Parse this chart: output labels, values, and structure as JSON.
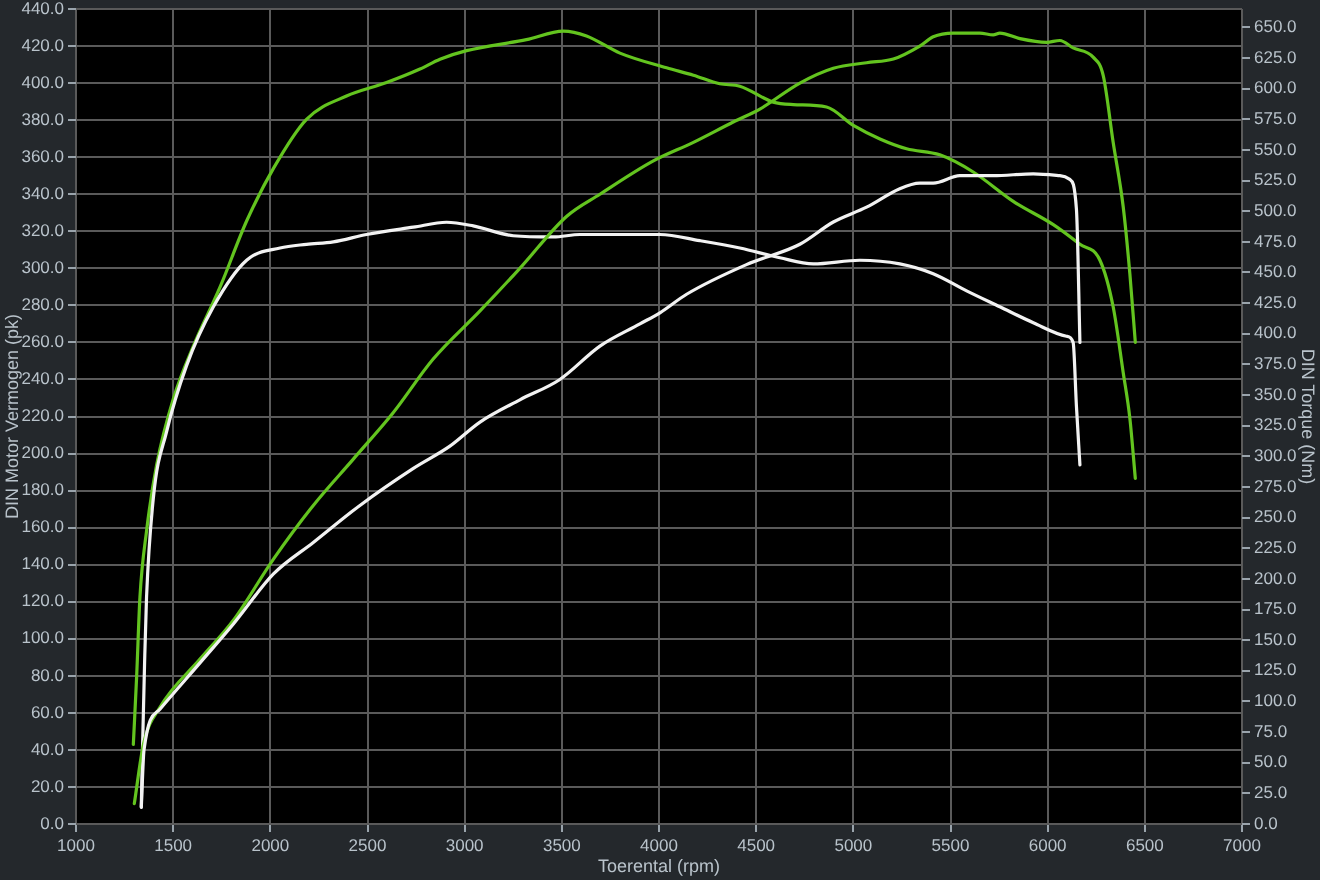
{
  "chart_data": {
    "type": "line",
    "xlabel": "Toerental (rpm)",
    "ylabel": "DIN Motor Vermogen (pk)",
    "y2label": "DIN Torque (Nm)",
    "xlim": [
      1000,
      7000
    ],
    "xticks": [
      1000,
      1500,
      2000,
      2500,
      3000,
      3500,
      4000,
      4500,
      5000,
      5500,
      6000,
      6500,
      7000
    ],
    "ylim": [
      0,
      440
    ],
    "yticks": [
      {
        "value": 0,
        "label": "0.0"
      },
      {
        "value": 20,
        "label": "20.0"
      },
      {
        "value": 40,
        "label": "40.0"
      },
      {
        "value": 60,
        "label": "60.0"
      },
      {
        "value": 80,
        "label": "80.0"
      },
      {
        "value": 100,
        "label": "100.0"
      },
      {
        "value": 120,
        "label": "120.0"
      },
      {
        "value": 140,
        "label": "140.0"
      },
      {
        "value": 160,
        "label": "160.0"
      },
      {
        "value": 180,
        "label": "180.0"
      },
      {
        "value": 200,
        "label": "200.0"
      },
      {
        "value": 220,
        "label": "220.0"
      },
      {
        "value": 240,
        "label": "240.0"
      },
      {
        "value": 260,
        "label": "260.0"
      },
      {
        "value": 280,
        "label": "280.0"
      },
      {
        "value": 300,
        "label": "300.0"
      },
      {
        "value": 320,
        "label": "320.0"
      },
      {
        "value": 340,
        "label": "340.0"
      },
      {
        "value": 360,
        "label": "360.0"
      },
      {
        "value": 380,
        "label": "380.0"
      },
      {
        "value": 400,
        "label": "400.0"
      },
      {
        "value": 420,
        "label": "420.0"
      },
      {
        "value": 440,
        "label": "440.0"
      }
    ],
    "y2lim": [
      0,
      665
    ],
    "y2ticks": [
      {
        "value": 0,
        "label": "0.0"
      },
      {
        "value": 25,
        "label": "25.0"
      },
      {
        "value": 50,
        "label": "50.0"
      },
      {
        "value": 75,
        "label": "75.0"
      },
      {
        "value": 100,
        "label": "100.0"
      },
      {
        "value": 125,
        "label": "125.0"
      },
      {
        "value": 150,
        "label": "150.0"
      },
      {
        "value": 175,
        "label": "175.0"
      },
      {
        "value": 200,
        "label": "200.0"
      },
      {
        "value": 225,
        "label": "225.0"
      },
      {
        "value": 250,
        "label": "250.0"
      },
      {
        "value": 275,
        "label": "275.0"
      },
      {
        "value": 300,
        "label": "300.0"
      },
      {
        "value": 325,
        "label": "325.0"
      },
      {
        "value": 350,
        "label": "350.0"
      },
      {
        "value": 375,
        "label": "375.0"
      },
      {
        "value": 400,
        "label": "400.0"
      },
      {
        "value": 425,
        "label": "425.0"
      },
      {
        "value": 450,
        "label": "450.0"
      },
      {
        "value": 475,
        "label": "475.0"
      },
      {
        "value": 500,
        "label": "500.0"
      },
      {
        "value": 525,
        "label": "525.0"
      },
      {
        "value": 550,
        "label": "550.0"
      },
      {
        "value": 575,
        "label": "575.0"
      },
      {
        "value": 600,
        "label": "600.0"
      },
      {
        "value": 625,
        "label": "625.0"
      },
      {
        "value": 650,
        "label": "650.0"
      }
    ],
    "grid": true,
    "legend": false,
    "marker": "none",
    "line_style": "solid",
    "series": [
      {
        "color": "#f2f2f2",
        "x": [
          1336,
          1350,
          1432,
          1638,
          1810,
          2016,
          2221,
          2461,
          2736,
          2924,
          3079,
          3284,
          3490,
          3696,
          3902,
          4005,
          4142,
          4450,
          4725,
          4897,
          5068,
          5239,
          5342,
          5411,
          5548,
          5720,
          5926,
          6063,
          6114,
          6148,
          6166
        ],
        "values": [
          9,
          40,
          62,
          87,
          108,
          135,
          152,
          172,
          192,
          204,
          217,
          229,
          240,
          258,
          270,
          276,
          286,
          302,
          313,
          325,
          333,
          343,
          346,
          346,
          350,
          350,
          351,
          350,
          348,
          332,
          260
        ]
      },
      {
        "color": "#63c41f",
        "x": [
          1300,
          1347,
          1432,
          1638,
          1810,
          2016,
          2221,
          2427,
          2632,
          2838,
          3079,
          3284,
          3524,
          3696,
          3971,
          4177,
          4382,
          4519,
          4725,
          4897,
          5068,
          5206,
          5342,
          5411,
          5514,
          5651,
          5720,
          5754,
          5857,
          5994,
          6063,
          6131,
          6234,
          6286,
          6337,
          6389,
          6423,
          6451
        ],
        "values": [
          11,
          43,
          63,
          89,
          110,
          143,
          172,
          197,
          222,
          251,
          277,
          300,
          328,
          340,
          358,
          368,
          379,
          386,
          400,
          408,
          411,
          413,
          420,
          425,
          427,
          427,
          426,
          427,
          424,
          422,
          423,
          419,
          414,
          404,
          368,
          333,
          297,
          260
        ]
      },
      {
        "color": "#f2f2f2",
        "axis": "y2",
        "x": [
          1336,
          1342,
          1353,
          1363,
          1398,
          1466,
          1569,
          1707,
          1878,
          2050,
          2186,
          2324,
          2495,
          2736,
          2907,
          3044,
          3250,
          3456,
          3593,
          3799,
          4005,
          4210,
          4416,
          4622,
          4794,
          5034,
          5239,
          5411,
          5583,
          5754,
          5926,
          6097,
          6131,
          6148,
          6166
        ],
        "values": [
          14,
          60,
          132,
          185,
          266,
          320,
          374,
          422,
          460,
          470,
          473,
          475,
          481,
          487,
          491,
          488,
          480,
          479,
          481,
          481,
          481,
          476,
          470,
          462,
          457,
          460,
          457,
          449,
          435,
          422,
          409,
          398,
          393,
          341,
          293
        ]
      },
      {
        "color": "#63c41f",
        "axis": "y2",
        "x": [
          1295,
          1312,
          1329,
          1363,
          1415,
          1501,
          1604,
          1741,
          1878,
          2016,
          2186,
          2392,
          2598,
          2770,
          2873,
          3010,
          3318,
          3508,
          3627,
          3799,
          4039,
          4177,
          4313,
          4416,
          4588,
          4691,
          4862,
          5000,
          5137,
          5274,
          5445,
          5617,
          5823,
          6029,
          6166,
          6269,
          6337,
          6389,
          6423,
          6451
        ],
        "values": [
          65,
          120,
          185,
          239,
          293,
          347,
          390,
          438,
          492,
          535,
          575,
          594,
          605,
          616,
          624,
          631,
          640,
          647,
          643,
          629,
          617,
          611,
          604,
          602,
          589,
          587,
          585,
          570,
          559,
          551,
          546,
          532,
          508,
          489,
          473,
          460,
          422,
          368,
          331,
          282
        ]
      }
    ]
  }
}
